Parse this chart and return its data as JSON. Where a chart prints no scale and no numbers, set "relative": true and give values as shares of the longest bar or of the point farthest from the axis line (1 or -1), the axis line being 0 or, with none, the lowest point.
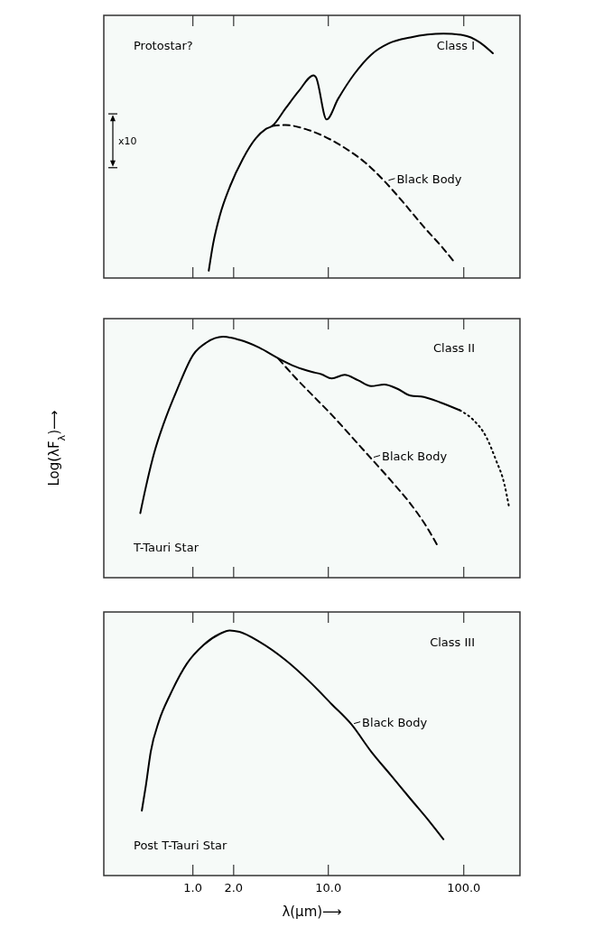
{
  "chart_data": [
    {
      "type": "line",
      "relative": true,
      "title": "Class I",
      "subtitle": "Protostar?",
      "log": "x",
      "xlim": [
        0.22,
        260
      ],
      "xticks": [
        {
          "value": 1,
          "label": null
        },
        {
          "value": 2,
          "label": null
        },
        {
          "value": 10,
          "label": null
        },
        {
          "value": 100,
          "label": null
        }
      ],
      "tick_labels": false,
      "annotations": [
        "x10",
        {
          "text": "Black Body",
          "x": 27,
          "y": 0.4
        }
      ],
      "series": [
        {
          "color": "#000000",
          "line_style": "solid",
          "x": [
            1.31,
            1.41,
            1.58,
            1.87,
            2.34,
            2.92,
            3.46,
            3.87,
            4.83,
            6.05,
            7.78,
            8.09,
            9.72,
            11.8,
            15.6,
            20.7,
            28.1,
            40.4,
            70.8,
            98.9,
            131,
            164
          ],
          "values": [
            0.03,
            0.139,
            0.255,
            0.372,
            0.488,
            0.572,
            0.61,
            0.623,
            0.694,
            0.765,
            0.83,
            0.823,
            0.649,
            0.733,
            0.836,
            0.914,
            0.961,
            0.985,
            1,
            0.994,
            0.965,
            0.92
          ]
        },
        {
          "color": "#000000",
          "line_style": "dashed",
          "x": [
            3.87,
            4.83,
            6.76,
            9.46,
            13.2,
            18.5,
            25.9,
            36.1,
            50.6,
            70.8,
            86.0
          ],
          "values": [
            0.623,
            0.626,
            0.61,
            0.578,
            0.533,
            0.475,
            0.397,
            0.307,
            0.21,
            0.12,
            0.062
          ]
        }
      ]
    },
    {
      "type": "line",
      "relative": true,
      "title": "Class II",
      "subtitle": "T-Tauri Star",
      "ylabel": "Log(λF$_{λ}$)⟶",
      "log": "x",
      "xlim": [
        0.22,
        260
      ],
      "xticks": [
        {
          "value": 1,
          "label": null
        },
        {
          "value": 2,
          "label": null
        },
        {
          "value": 10,
          "label": null
        },
        {
          "value": 100,
          "label": null
        }
      ],
      "tick_labels": false,
      "annotations": [
        {
          "text": "Black Body",
          "x": 21,
          "y": 0.5
        }
      ],
      "series": [
        {
          "color": "#000000",
          "line_style": "solid",
          "x": [
            0.409,
            0.45,
            0.517,
            0.611,
            0.765,
            1.01,
            1.26,
            1.67,
            2.21,
            3.09,
            4.32,
            5.72,
            7.56,
            8.94,
            10.6,
            13.2,
            16.5,
            20.7,
            25.9,
            32.4,
            40.4,
            50.6,
            66.8,
            93.5
          ],
          "values": [
            0.268,
            0.377,
            0.516,
            0.642,
            0.781,
            0.927,
            0.976,
            1,
            0.987,
            0.955,
            0.909,
            0.876,
            0.854,
            0.844,
            0.827,
            0.842,
            0.82,
            0.795,
            0.802,
            0.784,
            0.756,
            0.75,
            0.728,
            0.695
          ]
        },
        {
          "color": "#000000",
          "line_style": "dotted",
          "x": [
            93.5,
            117,
            146,
            173,
            199,
            216
          ],
          "values": [
            0.695,
            0.656,
            0.586,
            0.488,
            0.391,
            0.293
          ]
        },
        {
          "color": "#000000",
          "line_style": "dashed",
          "x": [
            4.28,
            5.72,
            7.56,
            10.6,
            14.8,
            20.7,
            28.9,
            40.4,
            53.5,
            63.2
          ],
          "values": [
            0.909,
            0.83,
            0.76,
            0.676,
            0.586,
            0.495,
            0.404,
            0.307,
            0.209,
            0.139
          ]
        }
      ]
    },
    {
      "type": "line",
      "relative": true,
      "title": "Class III",
      "subtitle": "Post T-Tauri Star",
      "xlabel": "λ(μm)⟶",
      "log": "x",
      "xlim": [
        0.22,
        260
      ],
      "xticks": [
        {
          "value": 1,
          "label": "1.0"
        },
        {
          "value": 2,
          "label": "2.0"
        },
        {
          "value": 10,
          "label": "10.0"
        },
        {
          "value": 100,
          "label": "100.0"
        }
      ],
      "tick_labels": "x",
      "annotations": [
        {
          "text": "Black Body",
          "x": 15,
          "y": 0.62
        }
      ],
      "series": [
        {
          "color": "#000000",
          "line_style": "solid",
          "x": [
            0.42,
            0.45,
            0.489,
            0.562,
            0.684,
            0.904,
            1.2,
            1.58,
            1.87,
            2.21,
            3.09,
            4.83,
            7.56,
            10.6,
            14.8,
            20.7,
            28.9,
            40.4,
            56.5,
            70.8
          ],
          "values": [
            0.265,
            0.368,
            0.506,
            0.63,
            0.741,
            0.865,
            0.941,
            0.986,
            1,
            0.994,
            0.954,
            0.879,
            0.782,
            0.699,
            0.617,
            0.506,
            0.41,
            0.313,
            0.217,
            0.148
          ]
        }
      ]
    }
  ]
}
